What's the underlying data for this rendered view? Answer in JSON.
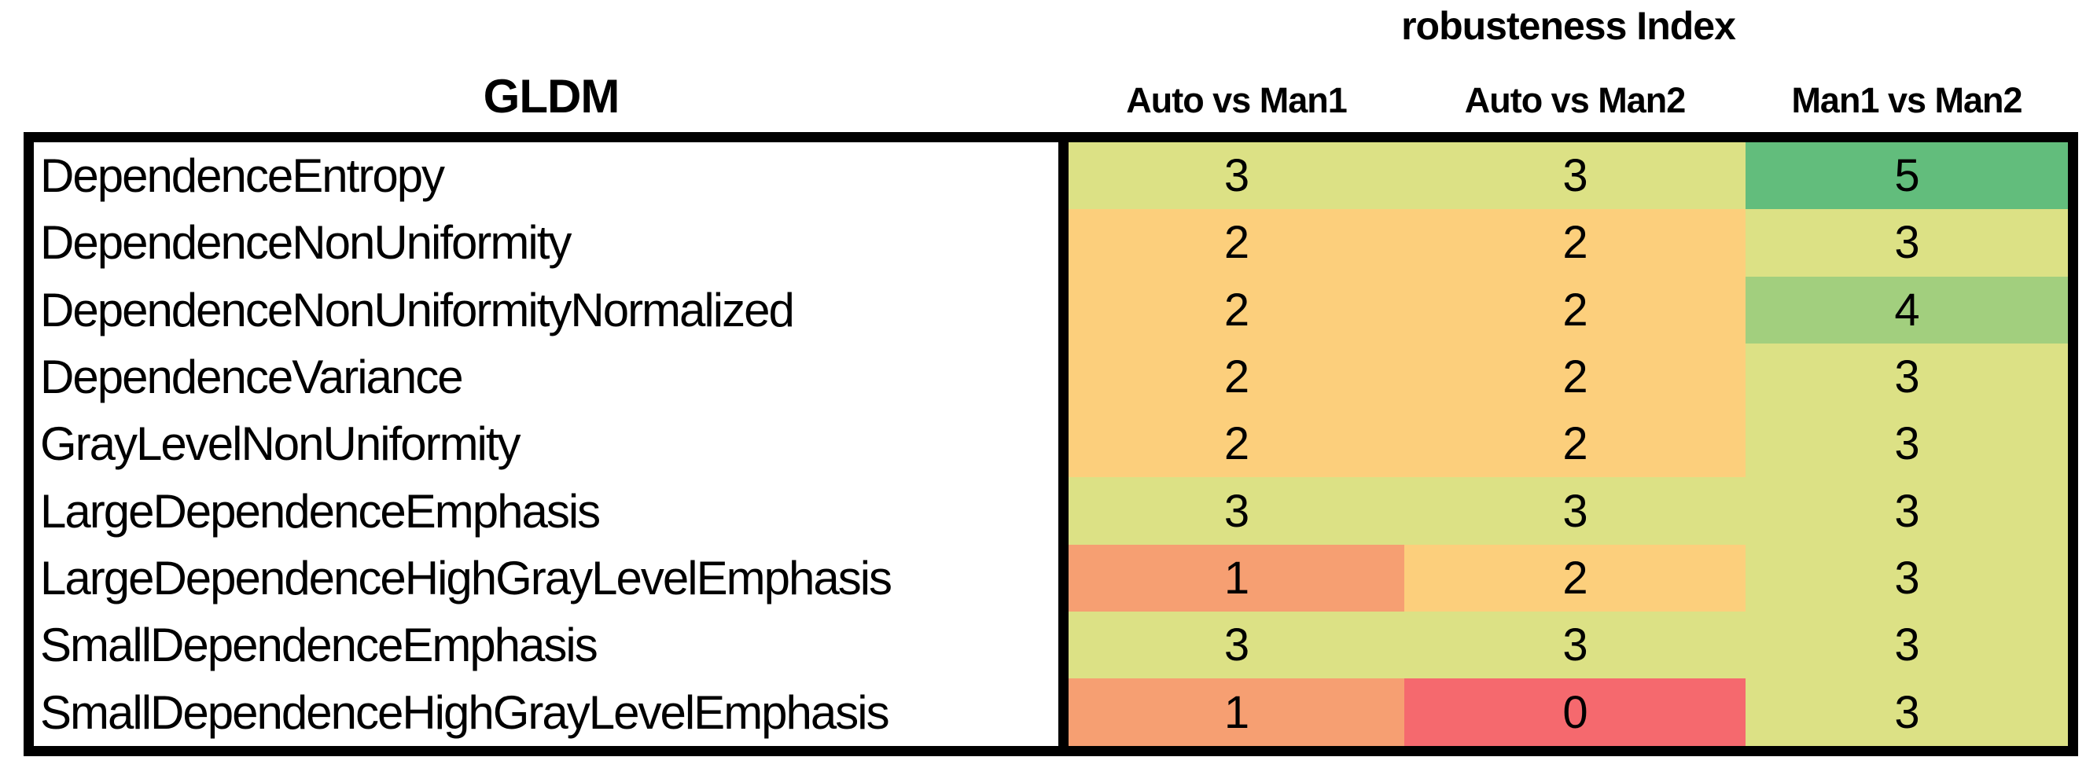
{
  "figure": {
    "main_title": "robusteness Index",
    "left_header": "GLDM"
  },
  "table": {
    "columns": [
      "Auto vs Man1",
      "Auto vs Man2",
      "Man1 vs Man2"
    ],
    "rows": [
      {
        "label": "DependenceEntropy",
        "values": [
          3,
          3,
          5
        ]
      },
      {
        "label": "DependenceNonUniformity",
        "values": [
          2,
          2,
          3
        ]
      },
      {
        "label": "DependenceNonUniformityNormalized",
        "values": [
          2,
          2,
          4
        ]
      },
      {
        "label": "DependenceVariance",
        "values": [
          2,
          2,
          3
        ]
      },
      {
        "label": "GrayLevelNonUniformity",
        "values": [
          2,
          2,
          3
        ]
      },
      {
        "label": "LargeDependenceEmphasis",
        "values": [
          3,
          3,
          3
        ]
      },
      {
        "label": "LargeDependenceHighGrayLevelEmphasis",
        "values": [
          1,
          2,
          3
        ]
      },
      {
        "label": "SmallDependenceEmphasis",
        "values": [
          3,
          3,
          3
        ]
      },
      {
        "label": "SmallDependenceHighGrayLevelEmphasis",
        "values": [
          1,
          0,
          3
        ]
      }
    ],
    "value_colors": {
      "0": "#f5696e",
      "1": "#f69f72",
      "2": "#fccf7c",
      "3": "#dce185",
      "4": "#a2cf7e",
      "5": "#62bd7c"
    },
    "border_color": "#000000"
  },
  "chart_data": {
    "type": "heatmap",
    "title": "robusteness Index",
    "row_header": "GLDM",
    "columns": [
      "Auto vs Man1",
      "Auto vs Man2",
      "Man1 vs Man2"
    ],
    "rows": [
      "DependenceEntropy",
      "DependenceNonUniformity",
      "DependenceNonUniformityNormalized",
      "DependenceVariance",
      "GrayLevelNonUniformity",
      "LargeDependenceEmphasis",
      "LargeDependenceHighGrayLevelEmphasis",
      "SmallDependenceEmphasis",
      "SmallDependenceHighGrayLevelEmphasis"
    ],
    "values": [
      [
        3,
        3,
        5
      ],
      [
        2,
        2,
        3
      ],
      [
        2,
        2,
        4
      ],
      [
        2,
        2,
        3
      ],
      [
        2,
        2,
        3
      ],
      [
        3,
        3,
        3
      ],
      [
        1,
        2,
        3
      ],
      [
        3,
        3,
        3
      ],
      [
        1,
        0,
        3
      ]
    ],
    "value_range": [
      0,
      5
    ],
    "colormap": {
      "0": "#f5696e",
      "1": "#f69f72",
      "2": "#fccf7c",
      "3": "#dce185",
      "4": "#a2cf7e",
      "5": "#62bd7c"
    },
    "legend_position": "none",
    "grid": false
  }
}
